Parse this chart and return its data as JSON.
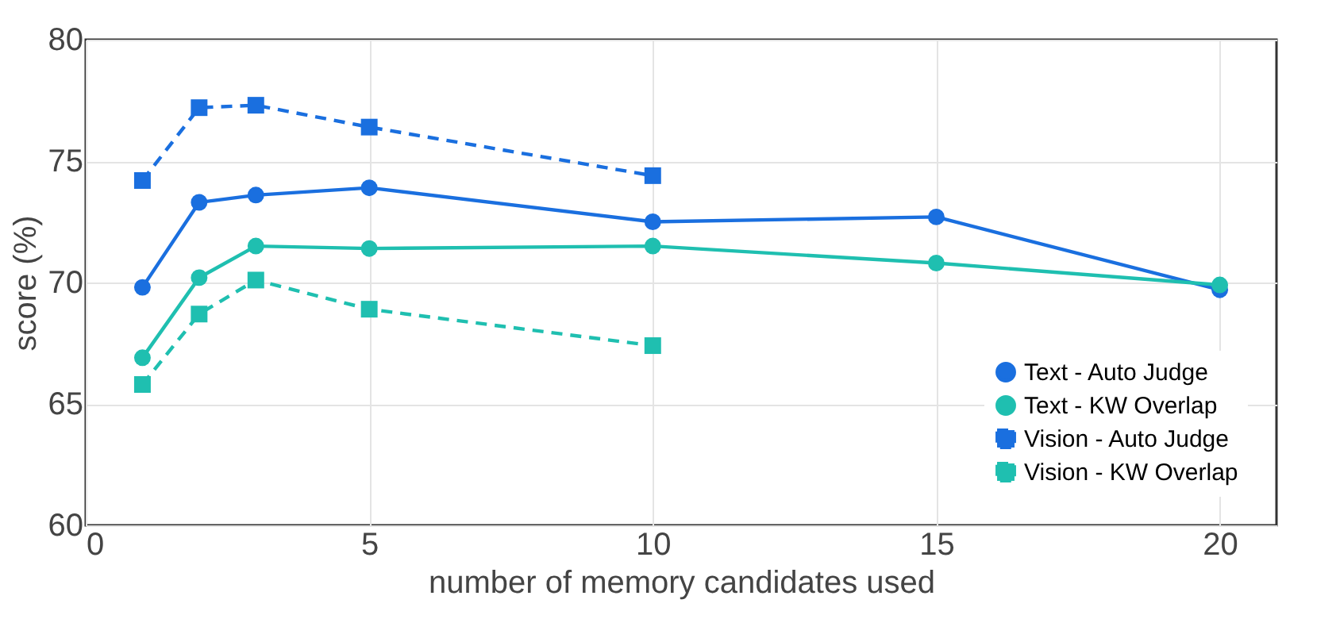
{
  "chart_data": {
    "type": "line",
    "xlabel": "number of memory candidates used",
    "ylabel": "score (%)",
    "x": [
      1,
      2,
      3,
      5,
      10,
      15,
      20
    ],
    "xlim": [
      0,
      21
    ],
    "xticks": [
      0,
      5,
      10,
      15,
      20
    ],
    "ylim": [
      60,
      80
    ],
    "yticks": [
      60,
      65,
      70,
      75,
      80
    ],
    "grid": true,
    "legend": "bottom right",
    "series": [
      {
        "name": "Text - Auto Judge",
        "color": "#1a6fdf",
        "marker": "circle",
        "line_style": "solid",
        "values": [
          69.8,
          73.3,
          73.6,
          73.9,
          72.5,
          72.7,
          69.7
        ]
      },
      {
        "name": "Text - KW Overlap",
        "color": "#1fbfb0",
        "marker": "circle",
        "line_style": "solid",
        "values": [
          66.9,
          70.2,
          71.5,
          71.4,
          71.5,
          70.8,
          69.9
        ]
      },
      {
        "name": "Vision - Auto Judge",
        "color": "#1a6fdf",
        "marker": "square",
        "line_style": "dashed",
        "values": [
          74.2,
          77.2,
          77.3,
          76.4,
          74.4,
          null,
          null
        ]
      },
      {
        "name": "Vision - KW Overlap",
        "color": "#1fbfb0",
        "marker": "square",
        "line_style": "dashed",
        "values": [
          65.8,
          68.7,
          70.1,
          68.9,
          67.4,
          null,
          null
        ]
      }
    ]
  }
}
